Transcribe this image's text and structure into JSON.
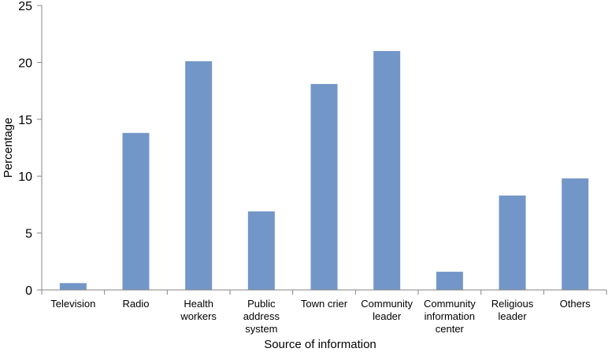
{
  "chart_data": {
    "type": "bar",
    "categories": [
      [
        "Television"
      ],
      [
        "Radio"
      ],
      [
        "Health",
        "workers"
      ],
      [
        "Public",
        "address",
        "system"
      ],
      [
        "Town crier"
      ],
      [
        "Community",
        "leader"
      ],
      [
        "Community",
        "information",
        "center"
      ],
      [
        "Religious",
        "leader"
      ],
      [
        "Others"
      ]
    ],
    "values": [
      0.6,
      13.8,
      20.1,
      6.9,
      18.1,
      21.0,
      1.6,
      8.3,
      9.8
    ],
    "xlabel": "Source of information",
    "ylabel": "Percentage",
    "ylim": [
      0,
      25
    ],
    "yticks": [
      0,
      5,
      10,
      15,
      20,
      25
    ],
    "grid": false,
    "bar_color": "#7396c8",
    "axis_color": "#868686"
  }
}
